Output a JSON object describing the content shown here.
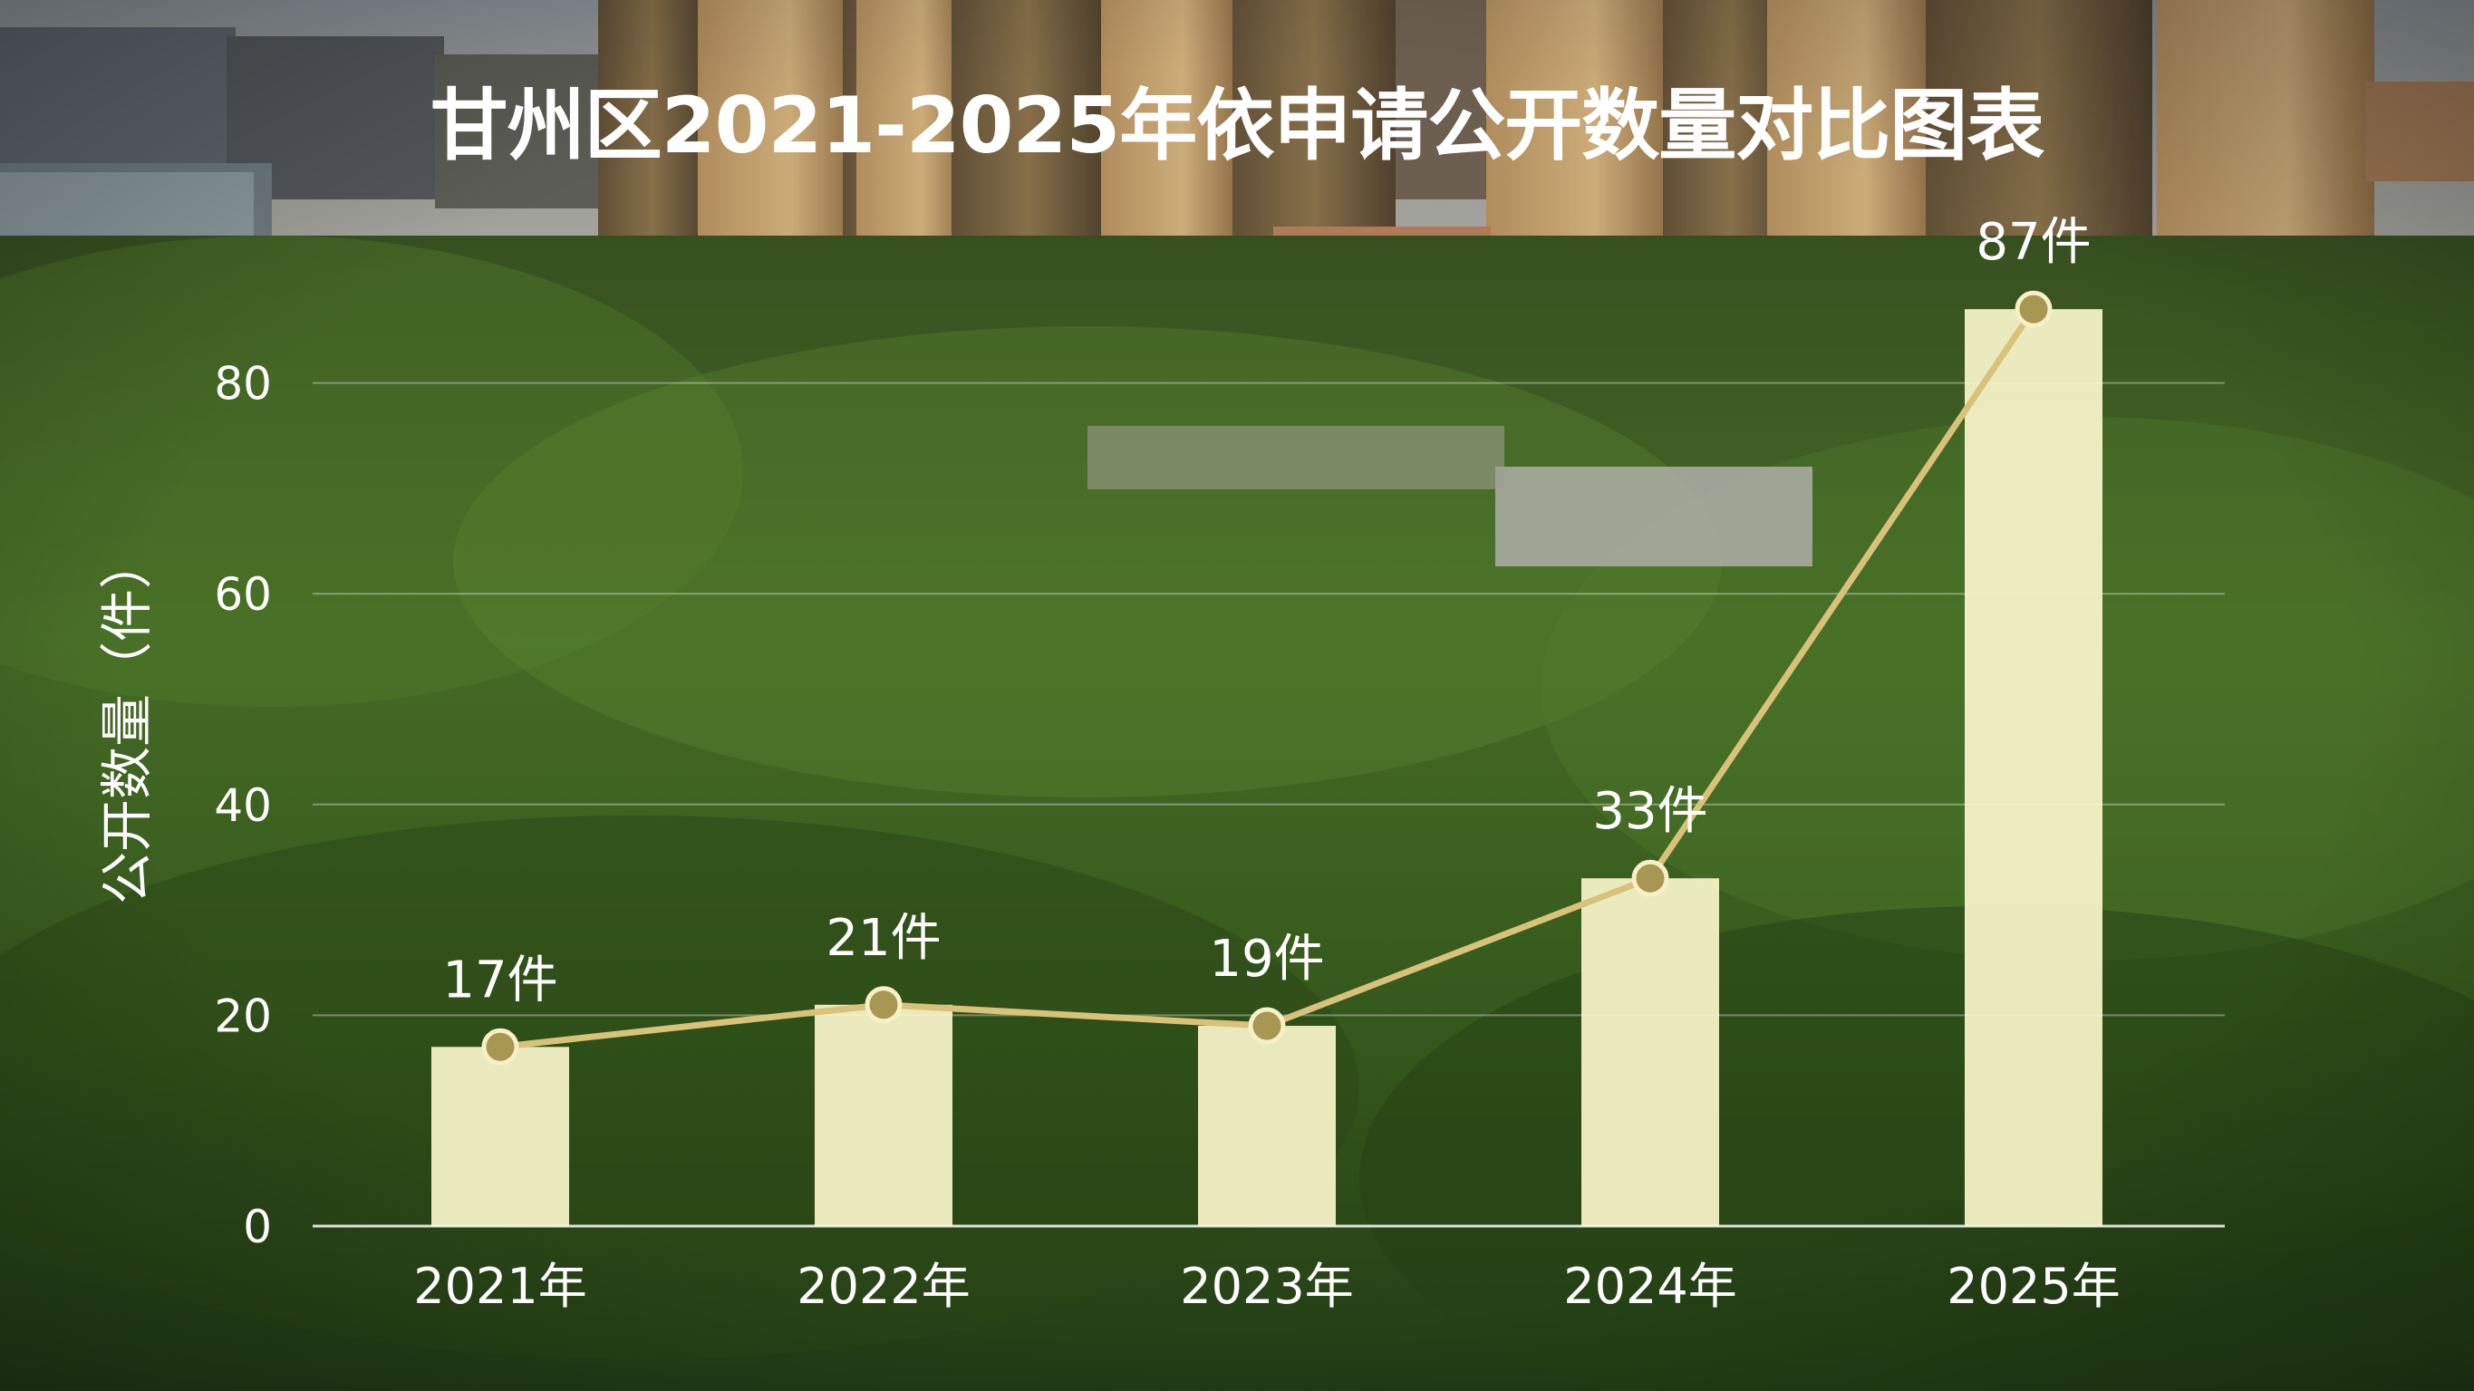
{
  "chart_data": {
    "type": "bar",
    "title": "甘州区2021-2025年依申请公开数量对比图表",
    "xlabel": "",
    "ylabel": "公开数量（件）",
    "categories": [
      "2021年",
      "2022年",
      "2023年",
      "2024年",
      "2025年"
    ],
    "values": [
      17,
      21,
      19,
      33,
      87
    ],
    "data_labels": [
      "17件",
      "21件",
      "19件",
      "33件",
      "87件"
    ],
    "line_overlay": true,
    "ylim": [
      0,
      87
    ],
    "yticks": [
      0,
      20,
      40,
      60,
      80
    ],
    "grid": true,
    "colors": {
      "bar": "#fbf6cc",
      "line": "#d8c27a",
      "marker": "#a89752",
      "marker_stroke": "#f7efc6",
      "grid": "#ffffff",
      "text": "#ffffff"
    }
  }
}
